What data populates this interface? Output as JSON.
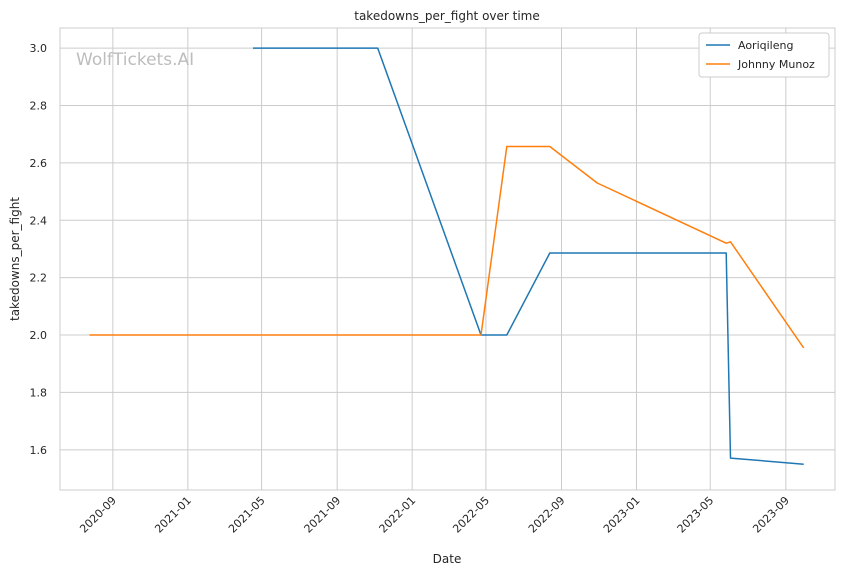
{
  "chart_data": {
    "type": "line",
    "title": "takedowns_per_fight over time",
    "xlabel": "Date",
    "ylabel": "takedowns_per_fight",
    "watermark": "WolfTickets.AI",
    "grid": true,
    "legend_position": "top-right",
    "x_ticks": [
      "2020-09",
      "2021-01",
      "2021-05",
      "2021-09",
      "2022-01",
      "2022-05",
      "2022-09",
      "2023-01",
      "2023-05",
      "2023-09"
    ],
    "y_ticks": [
      "1.6",
      "1.8",
      "2.0",
      "2.2",
      "2.4",
      "2.6",
      "2.8",
      "3.0"
    ],
    "xlim": [
      "2020-06-07",
      "2023-11-20"
    ],
    "ylim": [
      1.46,
      3.07
    ],
    "series": [
      {
        "name": "Aoriqileng",
        "color": "#1f77b4",
        "points": [
          {
            "x": "2021-04-17",
            "y": 3.0
          },
          {
            "x": "2021-11-06",
            "y": 3.0
          },
          {
            "x": "2022-04-23",
            "y": 2.0
          },
          {
            "x": "2022-06-04",
            "y": 2.0
          },
          {
            "x": "2022-08-13",
            "y": 2.286
          },
          {
            "x": "2023-05-27",
            "y": 2.286
          },
          {
            "x": "2023-06-03",
            "y": 1.571
          },
          {
            "x": "2023-09-30",
            "y": 1.55
          }
        ]
      },
      {
        "name": "Johnny Munoz",
        "color": "#ff7f0e",
        "points": [
          {
            "x": "2020-07-25",
            "y": 2.0
          },
          {
            "x": "2022-04-23",
            "y": 2.0
          },
          {
            "x": "2022-06-04",
            "y": 2.657
          },
          {
            "x": "2022-08-13",
            "y": 2.657
          },
          {
            "x": "2022-10-29",
            "y": 2.53
          },
          {
            "x": "2023-05-27",
            "y": 2.32
          },
          {
            "x": "2023-06-03",
            "y": 2.325
          },
          {
            "x": "2023-09-30",
            "y": 1.955
          }
        ]
      }
    ]
  }
}
